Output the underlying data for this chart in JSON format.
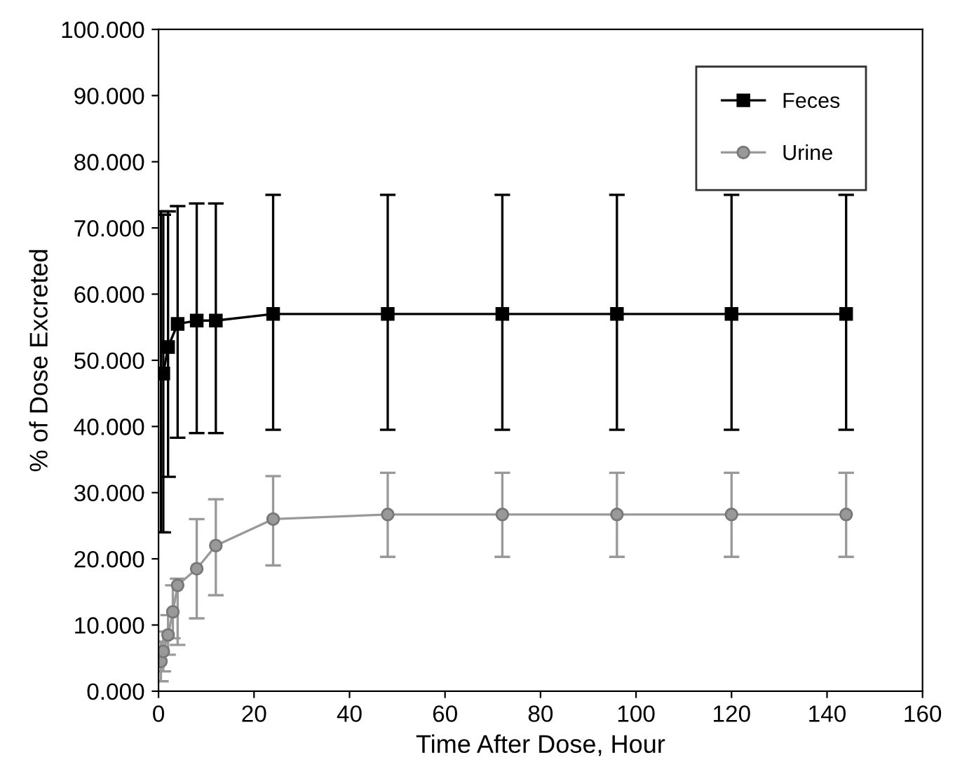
{
  "chart_data": {
    "type": "line",
    "xlabel": "Time After Dose, Hour",
    "ylabel": "% of Dose Excreted",
    "xlim": [
      0,
      160
    ],
    "xticks": [
      0,
      20,
      40,
      60,
      80,
      100,
      120,
      140,
      160
    ],
    "ylim": [
      0,
      100
    ],
    "yticks": [
      {
        "value": 0,
        "label": "0.000"
      },
      {
        "value": 10,
        "label": "10.000"
      },
      {
        "value": 20,
        "label": "20.000"
      },
      {
        "value": 30,
        "label": "30.000"
      },
      {
        "value": 40,
        "label": "40.000"
      },
      {
        "value": 50,
        "label": "50.000"
      },
      {
        "value": 60,
        "label": "60.000"
      },
      {
        "value": 70,
        "label": "70.000"
      },
      {
        "value": 80,
        "label": "80.000"
      },
      {
        "value": 90,
        "label": "90.000"
      },
      {
        "value": 100,
        "label": "100.000"
      }
    ],
    "grid": false,
    "legend": "top right",
    "line_style": "solid",
    "series": [
      {
        "name": "Feces",
        "color": "#000000",
        "marker": "square",
        "x": [
          0.5,
          1,
          2,
          4,
          8,
          12,
          24,
          48,
          72,
          96,
          120,
          144
        ],
        "values": [
          48,
          48,
          52,
          55.5,
          56,
          56,
          57,
          57,
          57,
          57,
          57,
          57
        ],
        "errors": [
          [
            24,
            72.5
          ],
          [
            24,
            72
          ],
          [
            32.4,
            72.5
          ],
          [
            38.3,
            73.3
          ],
          [
            39,
            73.7
          ],
          [
            39,
            73.7
          ],
          [
            39.5,
            75
          ],
          [
            39.5,
            75
          ],
          [
            39.5,
            75
          ],
          [
            39.5,
            75
          ],
          [
            39.5,
            75
          ],
          [
            39.5,
            75
          ]
        ]
      },
      {
        "name": "Urine",
        "color": "#999999",
        "marker": "circle",
        "x": [
          0.5,
          1,
          2,
          3,
          4,
          8,
          12,
          24,
          48,
          72,
          96,
          120,
          144
        ],
        "values": [
          4.5,
          6,
          8.5,
          12,
          16,
          18.5,
          22,
          26,
          26.7,
          26.7,
          26.7,
          26.7,
          26.7
        ],
        "errors": [
          [
            1.5,
            7.5
          ],
          [
            3,
            9
          ],
          [
            5.5,
            11.5
          ],
          [
            8,
            16
          ],
          [
            7,
            17
          ],
          [
            11,
            26
          ],
          [
            14.5,
            29
          ],
          [
            19,
            32.5
          ],
          [
            20.3,
            33
          ],
          [
            20.3,
            33
          ],
          [
            20.3,
            33
          ],
          [
            20.3,
            33
          ],
          [
            20.3,
            33
          ]
        ]
      }
    ]
  }
}
